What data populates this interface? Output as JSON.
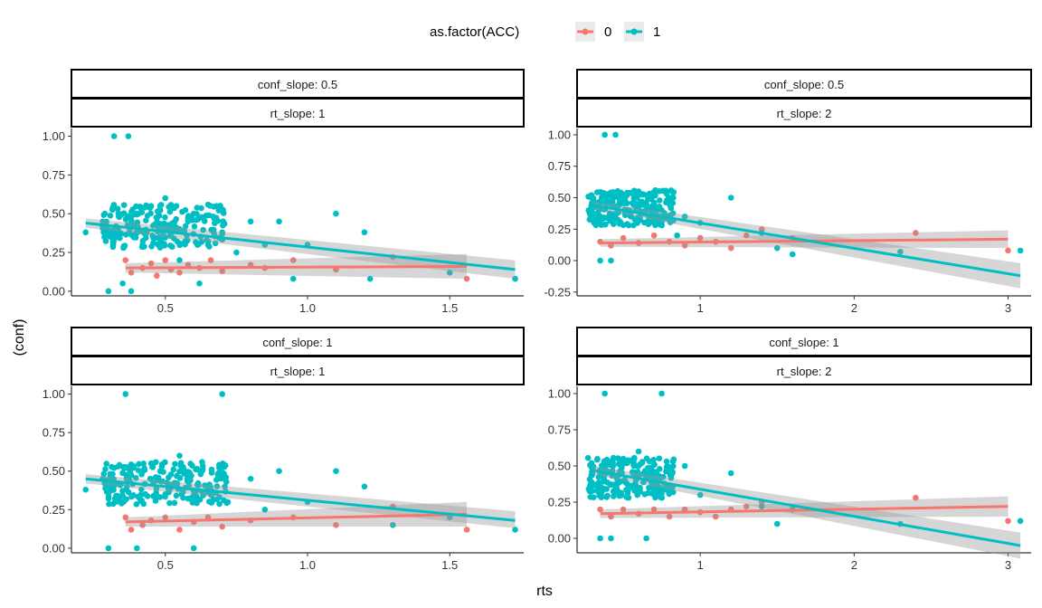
{
  "legend": {
    "title": "as.factor(ACC)",
    "items": [
      {
        "label": "0",
        "color": "#F8766D"
      },
      {
        "label": "1",
        "color": "#00BFC4"
      }
    ]
  },
  "axis": {
    "xlabel": "rts",
    "ylabel": "(conf)"
  },
  "chart_data": [
    {
      "type": "scatter",
      "panel": "top-left",
      "strips": [
        "conf_slope: 0.5",
        "rt_slope: 1"
      ],
      "xlim": [
        0.17,
        1.76
      ],
      "ylim": [
        -0.03,
        1.05
      ],
      "xticks": [
        0.5,
        1.0,
        1.5
      ],
      "xtick_labels": [
        "0.5",
        "1.0",
        "1.5"
      ],
      "yticks": [
        0,
        0.25,
        0.5,
        0.75,
        1.0
      ],
      "ytick_labels": [
        "0.00",
        "0.25",
        "0.50",
        "0.75",
        "1.00"
      ],
      "series": [
        {
          "name": "0",
          "color": "#F8766D",
          "points": [
            [
              0.36,
              0.2
            ],
            [
              0.38,
              0.12
            ],
            [
              0.42,
              0.15
            ],
            [
              0.45,
              0.18
            ],
            [
              0.47,
              0.1
            ],
            [
              0.5,
              0.2
            ],
            [
              0.52,
              0.14
            ],
            [
              0.55,
              0.12
            ],
            [
              0.58,
              0.17
            ],
            [
              0.62,
              0.15
            ],
            [
              0.66,
              0.2
            ],
            [
              0.7,
              0.13
            ],
            [
              0.8,
              0.17
            ],
            [
              0.85,
              0.15
            ],
            [
              0.95,
              0.2
            ],
            [
              1.1,
              0.14
            ],
            [
              1.3,
              0.22
            ],
            [
              1.56,
              0.08
            ]
          ],
          "fit": {
            "x": [
              0.36,
              1.56
            ],
            "y": [
              0.15,
              0.16
            ],
            "se_low": [
              0.12,
              0.08
            ],
            "se_high": [
              0.18,
              0.24
            ]
          }
        },
        {
          "name": "1",
          "color": "#00BFC4",
          "points": [
            [
              0.22,
              0.38
            ],
            [
              0.28,
              0.45
            ],
            [
              0.3,
              0.0
            ],
            [
              0.32,
              1.0
            ],
            [
              0.35,
              0.05
            ],
            [
              0.37,
              1.0
            ],
            [
              0.38,
              0.0
            ],
            [
              0.4,
              0.5
            ],
            [
              0.42,
              0.3
            ],
            [
              0.45,
              0.55
            ],
            [
              0.48,
              0.35
            ],
            [
              0.5,
              0.6
            ],
            [
              0.52,
              0.4
            ],
            [
              0.55,
              0.2
            ],
            [
              0.58,
              0.45
            ],
            [
              0.6,
              0.5
            ],
            [
              0.62,
              0.05
            ],
            [
              0.65,
              0.3
            ],
            [
              0.68,
              0.55
            ],
            [
              0.7,
              0.38
            ],
            [
              0.75,
              0.25
            ],
            [
              0.8,
              0.45
            ],
            [
              0.85,
              0.3
            ],
            [
              0.9,
              0.45
            ],
            [
              0.95,
              0.08
            ],
            [
              1.0,
              0.3
            ],
            [
              1.1,
              0.5
            ],
            [
              1.2,
              0.38
            ],
            [
              1.22,
              0.08
            ],
            [
              1.5,
              0.12
            ],
            [
              1.73,
              0.08
            ]
          ],
          "fit": {
            "x": [
              0.22,
              1.73
            ],
            "y": [
              0.44,
              0.14
            ],
            "se_low": [
              0.41,
              0.08
            ],
            "se_high": [
              0.47,
              0.2
            ]
          }
        }
      ]
    },
    {
      "type": "scatter",
      "panel": "top-right",
      "strips": [
        "conf_slope: 0.5",
        "rt_slope: 2"
      ],
      "xlim": [
        0.2,
        3.15
      ],
      "ylim": [
        -0.28,
        1.05
      ],
      "xticks": [
        1,
        2,
        3
      ],
      "xtick_labels": [
        "1",
        "2",
        "3"
      ],
      "yticks": [
        -0.25,
        0,
        0.25,
        0.5,
        0.75,
        1.0
      ],
      "ytick_labels": [
        "-0.25",
        "0.00",
        "0.25",
        "0.50",
        "0.75",
        "1.00"
      ],
      "series": [
        {
          "name": "0",
          "color": "#F8766D",
          "points": [
            [
              0.35,
              0.15
            ],
            [
              0.42,
              0.12
            ],
            [
              0.5,
              0.18
            ],
            [
              0.6,
              0.14
            ],
            [
              0.7,
              0.2
            ],
            [
              0.8,
              0.15
            ],
            [
              0.9,
              0.12
            ],
            [
              1.0,
              0.18
            ],
            [
              1.1,
              0.15
            ],
            [
              1.2,
              0.1
            ],
            [
              1.3,
              0.2
            ],
            [
              1.4,
              0.25
            ],
            [
              1.6,
              0.18
            ],
            [
              2.4,
              0.22
            ],
            [
              3.0,
              0.08
            ]
          ],
          "fit": {
            "x": [
              0.35,
              3.0
            ],
            "y": [
              0.14,
              0.17
            ],
            "se_low": [
              0.11,
              0.1
            ],
            "se_high": [
              0.17,
              0.24
            ]
          }
        },
        {
          "name": "1",
          "color": "#00BFC4",
          "points": [
            [
              0.3,
              0.38
            ],
            [
              0.35,
              0.0
            ],
            [
              0.38,
              1.0
            ],
            [
              0.42,
              0.0
            ],
            [
              0.45,
              1.0
            ],
            [
              0.5,
              0.5
            ],
            [
              0.55,
              0.35
            ],
            [
              0.6,
              0.55
            ],
            [
              0.65,
              0.45
            ],
            [
              0.7,
              0.3
            ],
            [
              0.75,
              0.4
            ],
            [
              0.8,
              0.5
            ],
            [
              0.85,
              0.2
            ],
            [
              0.9,
              0.35
            ],
            [
              1.0,
              0.3
            ],
            [
              1.2,
              0.5
            ],
            [
              1.4,
              0.22
            ],
            [
              1.5,
              0.1
            ],
            [
              1.6,
              0.05
            ],
            [
              2.3,
              0.07
            ],
            [
              3.08,
              0.08
            ]
          ],
          "fit": {
            "x": [
              0.3,
              3.08
            ],
            "y": [
              0.44,
              -0.12
            ],
            "se_low": [
              0.41,
              -0.22
            ],
            "se_high": [
              0.47,
              -0.02
            ]
          }
        }
      ]
    },
    {
      "type": "scatter",
      "panel": "bottom-left",
      "strips": [
        "conf_slope: 1",
        "rt_slope: 1"
      ],
      "xlim": [
        0.17,
        1.76
      ],
      "ylim": [
        -0.03,
        1.05
      ],
      "xticks": [
        0.5,
        1.0,
        1.5
      ],
      "xtick_labels": [
        "0.5",
        "1.0",
        "1.5"
      ],
      "yticks": [
        0,
        0.25,
        0.5,
        0.75,
        1.0
      ],
      "ytick_labels": [
        "0.00",
        "0.25",
        "0.50",
        "0.75",
        "1.00"
      ],
      "series": [
        {
          "name": "0",
          "color": "#F8766D",
          "points": [
            [
              0.36,
              0.2
            ],
            [
              0.38,
              0.12
            ],
            [
              0.42,
              0.15
            ],
            [
              0.45,
              0.18
            ],
            [
              0.5,
              0.2
            ],
            [
              0.55,
              0.12
            ],
            [
              0.6,
              0.17
            ],
            [
              0.65,
              0.2
            ],
            [
              0.7,
              0.14
            ],
            [
              0.8,
              0.18
            ],
            [
              0.95,
              0.2
            ],
            [
              1.1,
              0.15
            ],
            [
              1.3,
              0.27
            ],
            [
              1.56,
              0.12
            ]
          ],
          "fit": {
            "x": [
              0.36,
              1.56
            ],
            "y": [
              0.17,
              0.22
            ],
            "se_low": [
              0.14,
              0.14
            ],
            "se_high": [
              0.2,
              0.3
            ]
          }
        },
        {
          "name": "1",
          "color": "#00BFC4",
          "points": [
            [
              0.22,
              0.38
            ],
            [
              0.28,
              0.45
            ],
            [
              0.3,
              0.0
            ],
            [
              0.36,
              1.0
            ],
            [
              0.4,
              0.0
            ],
            [
              0.45,
              0.55
            ],
            [
              0.5,
              0.35
            ],
            [
              0.55,
              0.6
            ],
            [
              0.6,
              0.0
            ],
            [
              0.65,
              0.4
            ],
            [
              0.7,
              1.0
            ],
            [
              0.72,
              0.3
            ],
            [
              0.8,
              0.45
            ],
            [
              0.85,
              0.25
            ],
            [
              0.9,
              0.5
            ],
            [
              1.0,
              0.3
            ],
            [
              1.1,
              0.5
            ],
            [
              1.2,
              0.4
            ],
            [
              1.3,
              0.15
            ],
            [
              1.5,
              0.2
            ],
            [
              1.73,
              0.12
            ]
          ],
          "fit": {
            "x": [
              0.22,
              1.73
            ],
            "y": [
              0.45,
              0.18
            ],
            "se_low": [
              0.42,
              0.13
            ],
            "se_high": [
              0.48,
              0.24
            ]
          }
        }
      ]
    },
    {
      "type": "scatter",
      "panel": "bottom-right",
      "strips": [
        "conf_slope: 1",
        "rt_slope: 2"
      ],
      "xlim": [
        0.2,
        3.15
      ],
      "ylim": [
        -0.1,
        1.05
      ],
      "xticks": [
        1,
        2,
        3
      ],
      "xtick_labels": [
        "1",
        "2",
        "3"
      ],
      "yticks": [
        0,
        0.25,
        0.5,
        0.75,
        1.0
      ],
      "ytick_labels": [
        "0.00",
        "0.25",
        "0.50",
        "0.75",
        "1.00"
      ],
      "series": [
        {
          "name": "0",
          "color": "#F8766D",
          "points": [
            [
              0.35,
              0.2
            ],
            [
              0.42,
              0.15
            ],
            [
              0.5,
              0.2
            ],
            [
              0.6,
              0.17
            ],
            [
              0.7,
              0.2
            ],
            [
              0.8,
              0.15
            ],
            [
              0.9,
              0.2
            ],
            [
              1.0,
              0.18
            ],
            [
              1.1,
              0.15
            ],
            [
              1.2,
              0.2
            ],
            [
              1.3,
              0.22
            ],
            [
              1.4,
              0.25
            ],
            [
              1.6,
              0.2
            ],
            [
              2.4,
              0.28
            ],
            [
              3.0,
              0.12
            ]
          ],
          "fit": {
            "x": [
              0.35,
              3.0
            ],
            "y": [
              0.17,
              0.22
            ],
            "se_low": [
              0.14,
              0.15
            ],
            "se_high": [
              0.2,
              0.29
            ]
          }
        },
        {
          "name": "1",
          "color": "#00BFC4",
          "points": [
            [
              0.3,
              0.45
            ],
            [
              0.35,
              0.0
            ],
            [
              0.38,
              1.0
            ],
            [
              0.42,
              0.0
            ],
            [
              0.5,
              0.55
            ],
            [
              0.55,
              0.35
            ],
            [
              0.6,
              0.6
            ],
            [
              0.65,
              0.0
            ],
            [
              0.7,
              0.45
            ],
            [
              0.75,
              1.0
            ],
            [
              0.8,
              0.35
            ],
            [
              0.9,
              0.5
            ],
            [
              1.0,
              0.3
            ],
            [
              1.2,
              0.45
            ],
            [
              1.4,
              0.22
            ],
            [
              1.5,
              0.1
            ],
            [
              1.6,
              0.2
            ],
            [
              2.3,
              0.1
            ],
            [
              3.08,
              0.12
            ]
          ],
          "fit": {
            "x": [
              0.3,
              3.08
            ],
            "y": [
              0.47,
              -0.05
            ],
            "se_low": [
              0.44,
              -0.14
            ],
            "se_high": [
              0.5,
              0.04
            ]
          }
        }
      ]
    }
  ]
}
